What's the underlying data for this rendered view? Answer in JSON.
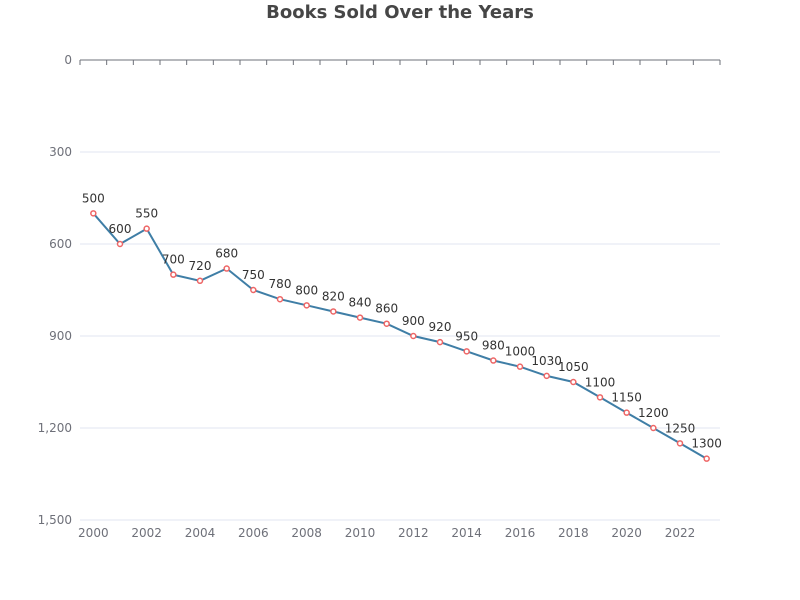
{
  "chart_data": {
    "type": "line",
    "title": "Books Sold Over the Years",
    "xlabel": "",
    "ylabel": "",
    "ylim": [
      0,
      1500
    ],
    "y_inverted": true,
    "y_ticks": [
      0,
      300,
      600,
      900,
      1200,
      1500
    ],
    "y_tick_labels": [
      "0",
      "300",
      "600",
      "900",
      "1,200",
      "1,500"
    ],
    "x_tick_labels": [
      "2000",
      "2002",
      "2004",
      "2006",
      "2008",
      "2010",
      "2012",
      "2014",
      "2016",
      "2018",
      "2020",
      "2022"
    ],
    "grid": true,
    "legend": "none",
    "x": [
      2000,
      2001,
      2002,
      2003,
      2004,
      2005,
      2006,
      2007,
      2008,
      2009,
      2010,
      2011,
      2012,
      2013,
      2014,
      2015,
      2016,
      2017,
      2018,
      2019,
      2020,
      2021,
      2022,
      2023
    ],
    "series": [
      {
        "values": [
          500,
          600,
          550,
          700,
          720,
          680,
          750,
          780,
          800,
          820,
          840,
          860,
          900,
          920,
          950,
          980,
          1000,
          1030,
          1050,
          1100,
          1150,
          1200,
          1250,
          1300
        ],
        "color": "#3f7ea6",
        "marker_color": "#ee6666"
      }
    ]
  }
}
